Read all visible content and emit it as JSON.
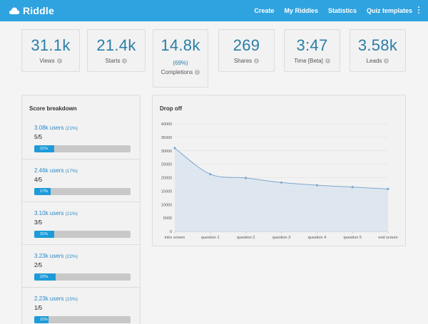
{
  "app": {
    "name": "Riddle"
  },
  "nav": {
    "items": [
      "Create",
      "My Riddles",
      "Statistics",
      "Quiz templates"
    ]
  },
  "stats": [
    {
      "value": "31.1k",
      "label": "Views"
    },
    {
      "value": "21.4k",
      "label": "Starts"
    },
    {
      "value": "14.8k",
      "pct": "(69%)",
      "label": "Completions"
    },
    {
      "value": "269",
      "label": "Shares"
    },
    {
      "value": "3:47",
      "label": "Time [Beta]"
    },
    {
      "value": "3.58k",
      "label": "Leads"
    }
  ],
  "score_breakdown": {
    "title": "Score breakdown",
    "rows": [
      {
        "users": "3.08k users",
        "pct": "(21%)",
        "score": "5/5",
        "bar_label": "21%",
        "fraction": 0.21
      },
      {
        "users": "2.46k users",
        "pct": "(17%)",
        "score": "4/5",
        "bar_label": "17%",
        "fraction": 0.17
      },
      {
        "users": "3.10k users",
        "pct": "(21%)",
        "score": "3/5",
        "bar_label": "21%",
        "fraction": 0.21
      },
      {
        "users": "3.23k users",
        "pct": "(22%)",
        "score": "2/5",
        "bar_label": "22%",
        "fraction": 0.22
      },
      {
        "users": "2.23k users",
        "pct": "(15%)",
        "score": "1/5",
        "bar_label": "15%",
        "fraction": 0.15
      }
    ]
  },
  "drop_off": {
    "title": "Drop off"
  },
  "chart_data": {
    "type": "area",
    "title": "Drop off",
    "categories": [
      "intro screen",
      "question 1",
      "question 2",
      "question 3",
      "question 4",
      "question 5",
      "end screen"
    ],
    "values": [
      31000,
      21300,
      19900,
      18200,
      17200,
      16500,
      15800
    ],
    "ylim": [
      0,
      40000
    ],
    "yticks": [
      0,
      5000,
      10000,
      15000,
      20000,
      25000,
      30000,
      35000,
      40000
    ],
    "grid": true,
    "colors": {
      "line": "#7fa7cf",
      "fill": "#dbe5f0",
      "point": "#7fa7cf"
    }
  },
  "colors": {
    "brand": "#2fa3e0",
    "accent": "#2a7ea8",
    "bar": "#1e9bd8"
  }
}
